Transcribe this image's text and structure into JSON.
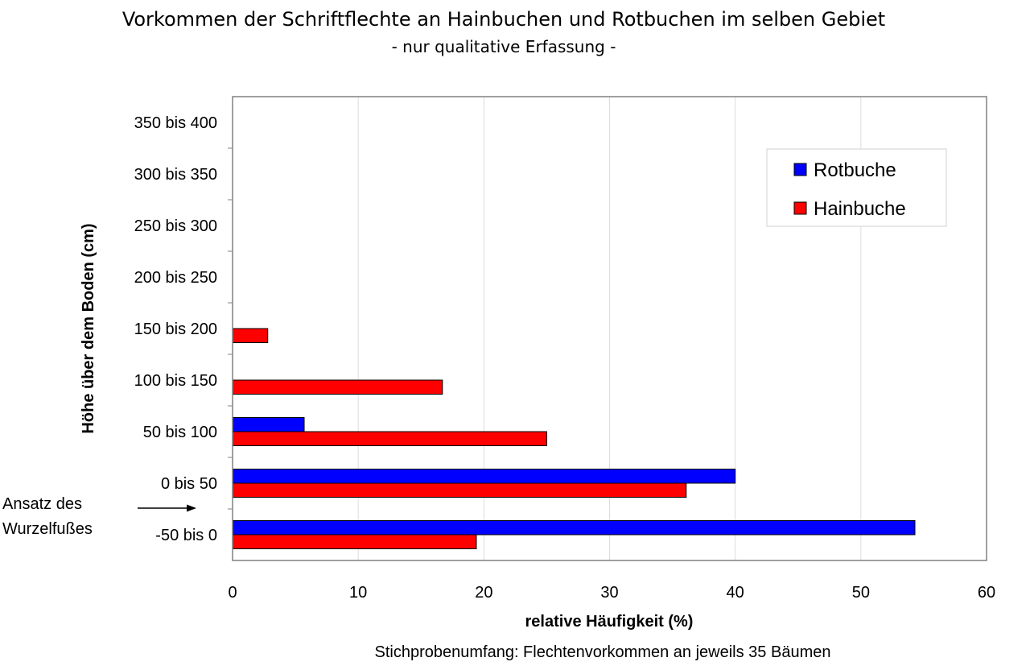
{
  "chart_data": {
    "type": "bar",
    "orientation": "horizontal",
    "title": "Vorkommen der Schriftflechte an Hainbuchen und Rotbuchen im selben Gebiet",
    "subtitle": "- nur qualitative Erfassung -",
    "xlabel": "relative Häufigkeit (%)",
    "ylabel": "Höhe über dem Boden (cm)",
    "note": "Stichprobenumfang: Flechtenvorkommen an jeweils 35 Bäumen",
    "annotation": {
      "line1": "Ansatz des",
      "line2": "Wurzelfußes"
    },
    "categories": [
      "-50 bis 0",
      "0 bis 50",
      "50 bis 100",
      "100 bis 150",
      "150 bis 200",
      "200 bis 250",
      "250 bis 300",
      "300 bis 350",
      "350 bis 400"
    ],
    "xlim": [
      0,
      60
    ],
    "xticks": [
      "0",
      "10",
      "20",
      "30",
      "40",
      "50",
      "60"
    ],
    "grid": true,
    "legend_position": "top-right",
    "series": [
      {
        "name": "Rotbuche",
        "color": "#0000ff",
        "values": [
          54.3,
          40.0,
          5.7,
          0,
          0,
          0,
          0,
          0,
          0
        ]
      },
      {
        "name": "Hainbuche",
        "color": "#ff0000",
        "values": [
          19.4,
          36.1,
          25.0,
          16.7,
          2.8,
          0,
          0,
          0,
          0
        ]
      }
    ]
  }
}
